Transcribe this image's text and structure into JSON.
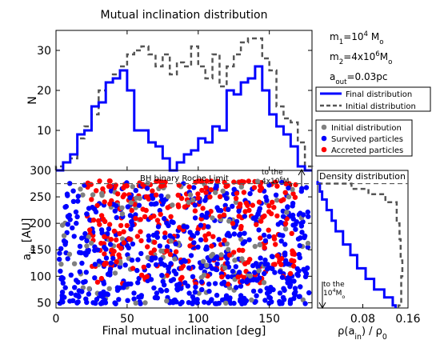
{
  "chart_data": [
    {
      "type": "line",
      "title": "Mutual inclination distribution",
      "xlabel": "",
      "ylabel": "N",
      "xlim": [
        0,
        180
      ],
      "ylim": [
        0,
        35
      ],
      "yticks": [
        10,
        20,
        30
      ],
      "bin_edges": [
        0,
        5,
        10,
        15,
        20,
        25,
        30,
        35,
        40,
        45,
        50,
        55,
        60,
        65,
        70,
        75,
        80,
        85,
        90,
        95,
        100,
        105,
        110,
        115,
        120,
        125,
        130,
        135,
        140,
        145,
        150,
        155,
        160,
        165,
        170,
        175,
        180
      ],
      "series": [
        {
          "name": "Final distribution",
          "color": "#0000ff",
          "style": "solid",
          "values": [
            0,
            2,
            4,
            9,
            10,
            16,
            17,
            22,
            23,
            25,
            20,
            10,
            10,
            7,
            6,
            3,
            0,
            2,
            4,
            5,
            8,
            7,
            11,
            10,
            20,
            19,
            22,
            23,
            26,
            20,
            14,
            11,
            9,
            6,
            1,
            0
          ]
        },
        {
          "name": "Initial distribution",
          "color": "#555555",
          "style": "dashed",
          "values": [
            1,
            2,
            3,
            8,
            11,
            14,
            20,
            22,
            24,
            26,
            29,
            30,
            31,
            29,
            26,
            29,
            24,
            27,
            26,
            31,
            26,
            23,
            29,
            21,
            26,
            29,
            32,
            33,
            33,
            28,
            25,
            16,
            13,
            12,
            7,
            1
          ]
        }
      ],
      "legend": [
        "Final distribution",
        "Initial distribution"
      ],
      "annotations": [
        "m₁=10⁴ Mₒ",
        "m₂=4x10⁶ Mₒ",
        "aₒᵤₜ=0.03pc"
      ],
      "annotation_rich": [
        [
          {
            "t": "m"
          },
          {
            "t": "1",
            "s": "sub"
          },
          {
            "t": "=10"
          },
          {
            "t": "4",
            "s": "sup"
          },
          {
            "t": " M"
          },
          {
            "t": "o",
            "s": "sub"
          }
        ],
        [
          {
            "t": "m"
          },
          {
            "t": "2",
            "s": "sub"
          },
          {
            "t": "=4x10"
          },
          {
            "t": "6",
            "s": "sup"
          },
          {
            "t": "M"
          },
          {
            "t": "o",
            "s": "sub"
          }
        ],
        [
          {
            "t": "a"
          },
          {
            "t": "out",
            "s": "sub"
          },
          {
            "t": "=0.03pc"
          }
        ]
      ]
    },
    {
      "type": "scatter",
      "title": "",
      "xlabel": "Final mutual inclination [deg]",
      "ylabel": "a_in [AU]",
      "ylabel_rich": [
        {
          "t": "a"
        },
        {
          "t": "in",
          "s": "sub"
        },
        {
          "t": " [AU]"
        }
      ],
      "xlim": [
        0,
        180
      ],
      "ylim": [
        40,
        300
      ],
      "xticks": [
        0,
        50,
        100,
        150
      ],
      "yticks": [
        50,
        100,
        150,
        200,
        250,
        300
      ],
      "roche_limit": 275,
      "roche_label": "BH binary Roche Limit",
      "arrow_up_label": "to the 4x10⁶Mₒ",
      "series": [
        {
          "name": "Initial distribution",
          "color": "#808080"
        },
        {
          "name": "Survived particles",
          "color": "#0000ff"
        },
        {
          "name": "Accreted particles",
          "color": "#ff0000"
        }
      ],
      "legend": [
        "Initial distribution",
        "Survived particles",
        "Accreted particles"
      ],
      "points_note": "",
      "points": {
        "n_gray": 140,
        "n_blue": 620,
        "n_red": 330
      }
    },
    {
      "type": "line",
      "title": "Density distribution",
      "xlabel": "ρ(a_in) / ρ_0",
      "xlabel_rich": [
        {
          "t": "ρ(a"
        },
        {
          "t": "in",
          "s": "sub"
        },
        {
          "t": ") / ρ"
        },
        {
          "t": "0",
          "s": "sub"
        }
      ],
      "xlim": [
        0,
        0.16
      ],
      "ylim": [
        40,
        300
      ],
      "xticks": [
        0.08,
        0.16
      ],
      "arrow_down_label": "to the 10⁴Mₒ",
      "series": [
        {
          "name": "Final distribution",
          "color": "#0000ff",
          "style": "solid",
          "steps": [
            [
              45,
              0.138
            ],
            [
              60,
              0.133
            ],
            [
              75,
              0.118
            ],
            [
              95,
              0.1
            ],
            [
              115,
              0.085
            ],
            [
              140,
              0.07
            ],
            [
              160,
              0.058
            ],
            [
              185,
              0.045
            ],
            [
              205,
              0.032
            ],
            [
              225,
              0.025
            ],
            [
              245,
              0.016
            ],
            [
              260,
              0.008
            ],
            [
              275,
              0.004
            ],
            [
              280,
              0.0
            ]
          ]
        },
        {
          "name": "Initial distribution",
          "color": "#555555",
          "style": "dashed",
          "steps": [
            [
              45,
              0.143
            ],
            [
              100,
              0.148
            ],
            [
              130,
              0.15
            ],
            [
              170,
              0.147
            ],
            [
              200,
              0.145
            ],
            [
              240,
              0.14
            ],
            [
              255,
              0.12
            ],
            [
              265,
              0.09
            ],
            [
              275,
              0.06
            ],
            [
              280,
              0.0
            ]
          ]
        }
      ]
    }
  ]
}
